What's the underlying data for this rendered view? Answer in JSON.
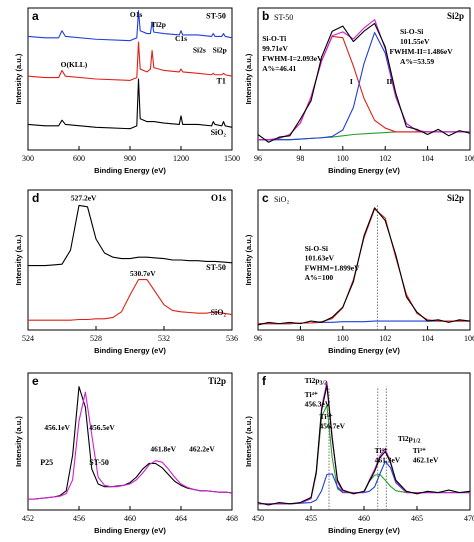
{
  "chart_data": [
    {
      "type": "line",
      "panel": "a",
      "xlabel": "Binding Energy (eV)",
      "ylabel": "Intensity (a.u.)",
      "xlim": [
        300,
        1500
      ],
      "xticks": [
        300,
        600,
        900,
        1200,
        1500
      ],
      "ylim": [
        0,
        100
      ],
      "x": [
        300,
        400,
        480,
        500,
        520,
        700,
        900,
        940,
        950,
        960,
        1000,
        1020,
        1030,
        1040,
        1100,
        1190,
        1200,
        1210,
        1300,
        1380,
        1390,
        1400,
        1440,
        1450,
        1460,
        1500
      ],
      "series": [
        {
          "name": "ST-50",
          "color": "#1f3fd6",
          "values": [
            80,
            79,
            79,
            84,
            80,
            78,
            77,
            79,
            98,
            84,
            82,
            82,
            90,
            83,
            82,
            81,
            84,
            81,
            81,
            80,
            82,
            80,
            80,
            82,
            80,
            79
          ]
        },
        {
          "name": "T1",
          "color": "#e0201a",
          "values": [
            52,
            51,
            51,
            56,
            52,
            50,
            49,
            51,
            76,
            57,
            55,
            57,
            70,
            58,
            56,
            55,
            57,
            55,
            54,
            53,
            54,
            53,
            53,
            54,
            53,
            52
          ]
        },
        {
          "name": "SiO₂",
          "color": "#000000",
          "values": [
            18,
            17,
            17,
            21,
            18,
            16,
            15,
            17,
            50,
            22,
            20,
            20,
            20,
            20,
            19,
            18,
            24,
            18,
            18,
            17,
            20,
            18,
            17,
            20,
            17,
            16
          ]
        }
      ],
      "annotations": [
        {
          "text": "O(KLL)"
        },
        {
          "text": "O1s"
        },
        {
          "text": "Ti2p"
        },
        {
          "text": "C1s"
        },
        {
          "text": "Si2s"
        },
        {
          "text": "Si2p"
        }
      ]
    },
    {
      "type": "line",
      "panel": "b",
      "title": "Si2p",
      "subtitle": "ST-50",
      "xlabel": "Binding Energy (eV)",
      "ylabel": "Intensity (a.u.)",
      "xlim": [
        96,
        106
      ],
      "xticks": [
        96,
        98,
        100,
        102,
        104,
        106
      ],
      "ylim": [
        0,
        110
      ],
      "x": [
        96,
        96.5,
        97,
        97.5,
        98,
        98.5,
        99,
        99.5,
        100,
        100.5,
        101,
        101.5,
        102,
        102.5,
        103,
        103.5,
        104,
        104.5,
        105,
        105.5,
        106
      ],
      "series": [
        {
          "color": "#2aa02a",
          "values": [
            8,
            8,
            8,
            8,
            8.5,
            9,
            9.5,
            10,
            11,
            12,
            12.5,
            13,
            13.5,
            14,
            14,
            14,
            14,
            14,
            14,
            14,
            14
          ]
        },
        {
          "color": "#e0201a",
          "values": [
            8,
            8,
            9,
            12,
            21,
            41,
            69,
            88,
            87,
            65,
            40,
            23,
            17,
            14,
            14,
            14,
            14,
            14,
            14,
            14,
            14
          ]
        },
        {
          "color": "#1f3fd6",
          "values": [
            8,
            8,
            8,
            8,
            8.5,
            9,
            9.5,
            10.5,
            15.5,
            33,
            67,
            91,
            75,
            41,
            20.5,
            15,
            14,
            14,
            14,
            14,
            14
          ]
        },
        {
          "color": "#d020d0",
          "values": [
            8,
            8,
            9,
            12,
            21,
            41,
            69,
            88.5,
            91.5,
            86,
            94.5,
            101,
            78.5,
            41,
            20.5,
            15,
            14,
            14,
            14,
            14,
            14
          ]
        },
        {
          "color": "#000000",
          "values": [
            12,
            6,
            10,
            11,
            24,
            38,
            72,
            92,
            96,
            84,
            92,
            98,
            80,
            44,
            18,
            16,
            12,
            16,
            11,
            15,
            13
          ]
        }
      ],
      "annotations": [
        {
          "text": "Si-O-Ti",
          "color": "#e0201a"
        },
        {
          "text": "99.71eV",
          "color": "#e0201a"
        },
        {
          "text": "FWHM-I=2.093eV",
          "color": "#e0201a"
        },
        {
          "text": "A%=46.41",
          "color": "#e0201a"
        },
        {
          "text": "Si-O-Si",
          "color": "#1f3fd6"
        },
        {
          "text": "101.55eV",
          "color": "#1f3fd6"
        },
        {
          "text": "FWHM-II=1.486eV",
          "color": "#1f3fd6"
        },
        {
          "text": "A%=53.59",
          "color": "#1f3fd6"
        },
        {
          "text": "I"
        },
        {
          "text": "II"
        }
      ]
    },
    {
      "type": "line",
      "panel": "d",
      "title": "O1s",
      "xlabel": "Binding Energy (eV)",
      "ylabel": "Intensity (a.u.)",
      "xlim": [
        524,
        536
      ],
      "xticks": [
        524,
        528,
        532,
        536
      ],
      "ylim": [
        0,
        100
      ],
      "x": [
        524,
        524.5,
        525,
        525.5,
        526,
        526.5,
        527,
        527.5,
        528,
        528.5,
        529,
        529.5,
        530,
        530.5,
        531,
        531.5,
        532,
        532.5,
        533,
        533.5,
        534,
        534.5,
        535,
        535.5,
        536
      ],
      "series": [
        {
          "name": "ST-50",
          "color": "#000000",
          "values": [
            46,
            46,
            46,
            46.5,
            47,
            57,
            89,
            88,
            65,
            55,
            52,
            51,
            51,
            52,
            52,
            51.5,
            51,
            50,
            50,
            49.5,
            49.5,
            49,
            49,
            48.5,
            48
          ]
        },
        {
          "name": "SiO₂",
          "color": "#e0201a",
          "values": [
            7,
            7,
            7,
            7,
            7,
            7,
            7.5,
            7.5,
            8,
            8,
            9,
            13,
            25,
            36,
            36,
            27,
            18,
            14,
            13,
            12.5,
            12,
            12,
            13,
            12,
            11
          ]
        }
      ],
      "annotations": [
        {
          "text": "527.2eV"
        },
        {
          "text": "530.7eV"
        }
      ]
    },
    {
      "type": "line",
      "panel": "c",
      "title": "Si2p",
      "subtitle": "SiO₂",
      "xlabel": "Binding Energy (eV)",
      "ylabel": "Intensity (a.u.)",
      "xlim": [
        96,
        106
      ],
      "xticks": [
        96,
        98,
        100,
        102,
        104,
        106
      ],
      "ylim": [
        0,
        110
      ],
      "vlines": [
        101.63
      ],
      "x": [
        96,
        96.5,
        97,
        97.5,
        98,
        98.5,
        99,
        99.5,
        100,
        100.5,
        101,
        101.5,
        102,
        102.5,
        103,
        103.5,
        104,
        104.5,
        105,
        105.5,
        106
      ],
      "series": [
        {
          "color": "#1f3fd6",
          "values": [
            5,
            5,
            5,
            5,
            5.5,
            5.5,
            6,
            6,
            6.5,
            6.5,
            6.5,
            7,
            7,
            7,
            7,
            7,
            7,
            7,
            7,
            7,
            7
          ]
        },
        {
          "color": "#e0201a",
          "values": [
            5,
            5,
            5,
            5,
            5.5,
            5.5,
            6.5,
            9,
            17.5,
            39.5,
            72.5,
            95,
            88,
            57,
            28,
            13,
            8,
            7,
            7,
            7,
            7
          ]
        },
        {
          "color": "#000000",
          "values": [
            4,
            6,
            5,
            6,
            5,
            7,
            6,
            10,
            18,
            38,
            74,
            96,
            86,
            59,
            26,
            14,
            7,
            8,
            6,
            8,
            7
          ]
        }
      ],
      "annotations": [
        {
          "text": "Si-O-Si",
          "color": "#e0201a"
        },
        {
          "text": "101.63eV",
          "color": "#e0201a"
        },
        {
          "text": "FWHM=1.899eV",
          "color": "#e0201a"
        },
        {
          "text": "A%=100",
          "color": "#e0201a"
        }
      ]
    },
    {
      "type": "line",
      "panel": "e",
      "title": "Ti2p",
      "xlabel": "Binding Energy (eV)",
      "ylabel": "Intensity (a.u.)",
      "xlim": [
        452,
        468
      ],
      "xticks": [
        452,
        456,
        460,
        464,
        468
      ],
      "ylim": [
        0,
        100
      ],
      "x": [
        452,
        452.5,
        453,
        453.5,
        454,
        454.5,
        455,
        455.5,
        456,
        456.5,
        457,
        457.5,
        458,
        458.5,
        459,
        459.5,
        460,
        460.5,
        461,
        461.5,
        462,
        462.5,
        463,
        463.5,
        464,
        464.5,
        465,
        465.5,
        466,
        466.5,
        467,
        467.5,
        468
      ],
      "series": [
        {
          "name": "P25",
          "color": "#000000",
          "values": [
            8,
            8,
            8.5,
            9,
            9.5,
            10.5,
            14,
            40,
            90,
            75,
            30,
            19,
            17,
            17,
            17.5,
            18,
            20,
            24,
            30,
            34,
            34,
            31,
            26,
            21,
            18,
            16,
            15,
            14,
            14,
            13.5,
            13,
            13,
            12.5
          ]
        },
        {
          "name": "ST-50",
          "color": "#d020d0",
          "values": [
            8,
            8,
            8.5,
            9,
            9.5,
            10,
            12,
            22,
            65,
            86,
            55,
            24,
            18,
            17,
            17,
            18,
            19,
            22,
            27,
            33,
            36,
            35,
            30,
            24,
            19,
            16.5,
            15,
            14,
            14,
            13.5,
            13,
            13,
            12.5
          ]
        }
      ],
      "annotations": [
        {
          "text": "456.1eV"
        },
        {
          "text": "456.5eV"
        },
        {
          "text": "461.8eV"
        },
        {
          "text": "462.2eV"
        }
      ]
    },
    {
      "type": "line",
      "panel": "f",
      "xlabel": "Binding Energy (eV)",
      "ylabel": "Intensity (a.u.)",
      "xlim": [
        450,
        470
      ],
      "xticks": [
        450,
        455,
        460,
        465,
        470
      ],
      "ylim": [
        0,
        110
      ],
      "vlines": [
        456.7,
        461.3,
        462.1
      ],
      "x": [
        450,
        451,
        452,
        453,
        454,
        455,
        455.5,
        456,
        456.5,
        457,
        457.5,
        458,
        459,
        460,
        460.5,
        461,
        461.5,
        462,
        462.5,
        463,
        464,
        465,
        466,
        467,
        468,
        469,
        470
      ],
      "series": [
        {
          "color": "#2aa02a",
          "values": [
            5,
            5,
            5,
            5,
            5.5,
            9,
            29,
            75,
            84,
            42,
            17,
            14,
            14,
            14,
            23,
            28,
            28.5,
            24,
            19,
            15.5,
            14,
            14,
            14,
            14,
            14,
            14,
            14
          ]
        },
        {
          "color": "#1f3fd6",
          "values": [
            5,
            5,
            5,
            5,
            5.5,
            6,
            8,
            15.5,
            28.5,
            29,
            18.5,
            14,
            14,
            14,
            15,
            18.5,
            29,
            39,
            34,
            22,
            14,
            14,
            14,
            14,
            14,
            14,
            14
          ]
        },
        {
          "color": "#d020d0",
          "values": [
            5,
            5,
            5,
            5,
            5.5,
            9,
            30,
            82.5,
            102.5,
            59,
            22.5,
            14.5,
            14,
            14,
            24,
            32.5,
            43.5,
            49,
            39,
            23.5,
            14,
            14,
            14,
            14,
            14,
            14,
            14
          ]
        },
        {
          "color": "#000000",
          "values": [
            6,
            4,
            6,
            5,
            6,
            10,
            31,
            80,
            100,
            57,
            24,
            16,
            13,
            15,
            23,
            31,
            42,
            47,
            38,
            24,
            15,
            13,
            15,
            14,
            16,
            14,
            15
          ]
        }
      ],
      "annotations": [
        {
          "text": "Ti2p",
          "sub": "3/2"
        },
        {
          "text": "Ti⁴⁺",
          "color": "#2aa02a"
        },
        {
          "text": "456.3eV",
          "color": "#2aa02a"
        },
        {
          "text": "Ti³⁺",
          "color": "#1f3fd6"
        },
        {
          "text": "456.7eV",
          "color": "#1f3fd6"
        },
        {
          "text": "Ti2p",
          "sub": "1/2"
        },
        {
          "text": "Ti⁴⁺",
          "color": "#2aa02a"
        },
        {
          "text": "461.3eV",
          "color": "#2aa02a"
        },
        {
          "text": "Ti³⁺",
          "color": "#1f3fd6"
        },
        {
          "text": "462.1eV",
          "color": "#1f3fd6"
        }
      ]
    }
  ]
}
